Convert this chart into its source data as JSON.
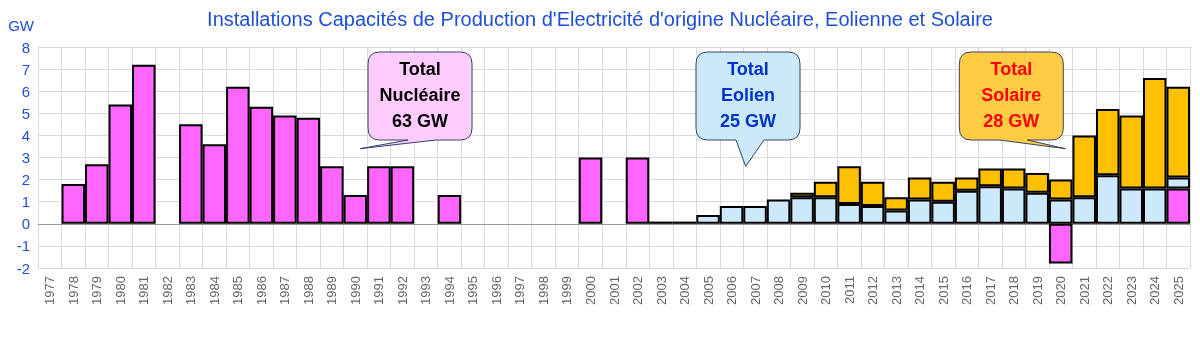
{
  "chart_data": {
    "type": "bar",
    "title": "Installations Capacités de Production d'Electricité d'origine Nucléaire, Eolienne et Solaire",
    "ylabel": "GW",
    "categories": [
      "1977",
      "1978",
      "1979",
      "1980",
      "1981",
      "1982",
      "1983",
      "1984",
      "1985",
      "1986",
      "1987",
      "1988",
      "1989",
      "1990",
      "1991",
      "1992",
      "1993",
      "1994",
      "1995",
      "1996",
      "1997",
      "1998",
      "1999",
      "2000",
      "2001",
      "2002",
      "2003",
      "2004",
      "2005",
      "2006",
      "2007",
      "2008",
      "2009",
      "2010",
      "2011",
      "2012",
      "2013",
      "2014",
      "2015",
      "2016",
      "2017",
      "2018",
      "2019",
      "2020",
      "2021",
      "2022",
      "2023",
      "2024",
      "2025"
    ],
    "stacked": true,
    "grid": true,
    "ylim": [
      -2,
      8
    ],
    "yticks": [
      -2,
      -1,
      0,
      1,
      2,
      3,
      4,
      5,
      6,
      7,
      8
    ],
    "series": [
      {
        "color": "#ff66ff",
        "values": [
          null,
          1.8,
          2.7,
          5.4,
          7.2,
          null,
          4.5,
          3.6,
          6.2,
          5.3,
          4.9,
          4.8,
          2.6,
          1.3,
          2.6,
          2.6,
          null,
          1.3,
          null,
          null,
          null,
          null,
          null,
          3.0,
          null,
          3.0,
          null,
          null,
          null,
          null,
          null,
          null,
          null,
          null,
          null,
          null,
          null,
          null,
          null,
          null,
          null,
          null,
          null,
          -1.8,
          null,
          null,
          null,
          null,
          1.6
        ]
      },
      {
        "color": "#cce9fb",
        "values": [
          null,
          null,
          null,
          null,
          null,
          null,
          null,
          null,
          null,
          null,
          null,
          null,
          null,
          null,
          null,
          null,
          null,
          null,
          null,
          null,
          null,
          null,
          null,
          null,
          null,
          null,
          0.1,
          0.1,
          0.4,
          0.8,
          0.8,
          1.1,
          1.2,
          1.2,
          0.9,
          0.8,
          0.6,
          1.1,
          1.0,
          1.5,
          1.7,
          1.6,
          1.4,
          1.1,
          1.2,
          2.2,
          1.6,
          1.6,
          0.5
        ]
      },
      {
        "color": "#ffc000",
        "values": [
          null,
          null,
          null,
          null,
          null,
          null,
          null,
          null,
          null,
          null,
          null,
          null,
          null,
          null,
          null,
          null,
          null,
          null,
          null,
          null,
          null,
          null,
          null,
          null,
          null,
          null,
          null,
          null,
          null,
          null,
          null,
          null,
          0.2,
          0.7,
          1.7,
          1.1,
          0.6,
          1.0,
          0.9,
          0.6,
          0.8,
          0.9,
          0.9,
          0.9,
          2.8,
          3.0,
          3.3,
          5.0,
          4.1
        ]
      }
    ],
    "annotations": [
      "Total\nNucléaire\n63 GW",
      "Total\nEolien\n25 GW",
      "Total\nSolaire\n28 GW"
    ]
  }
}
